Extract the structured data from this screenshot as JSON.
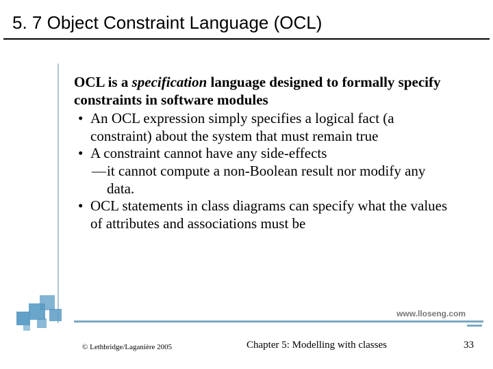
{
  "title": "5. 7 Object Constraint Language (OCL)",
  "intro_pre": "OCL is a ",
  "intro_em": "specification",
  "intro_post": " language designed to formally specify constraints in software modules",
  "bullets": {
    "b1": "An OCL expression simply specifies a logical fact (a constraint) about the system that must remain true",
    "b2": "A constraint cannot have any side-effects",
    "b2_sub": "it cannot compute a non-Boolean result nor modify any data.",
    "b3": "OCL statements in class diagrams can specify what the values of attributes and associations must be"
  },
  "url": "www.lloseng.com",
  "copyright": "© Lethbridge/Laganière 2005",
  "chapter": "Chapter 5: Modelling with classes",
  "page": "33",
  "colors": {
    "accent": "#7aa8c2",
    "square": "#5a9bc4",
    "text": "#000000",
    "url": "#777777"
  }
}
